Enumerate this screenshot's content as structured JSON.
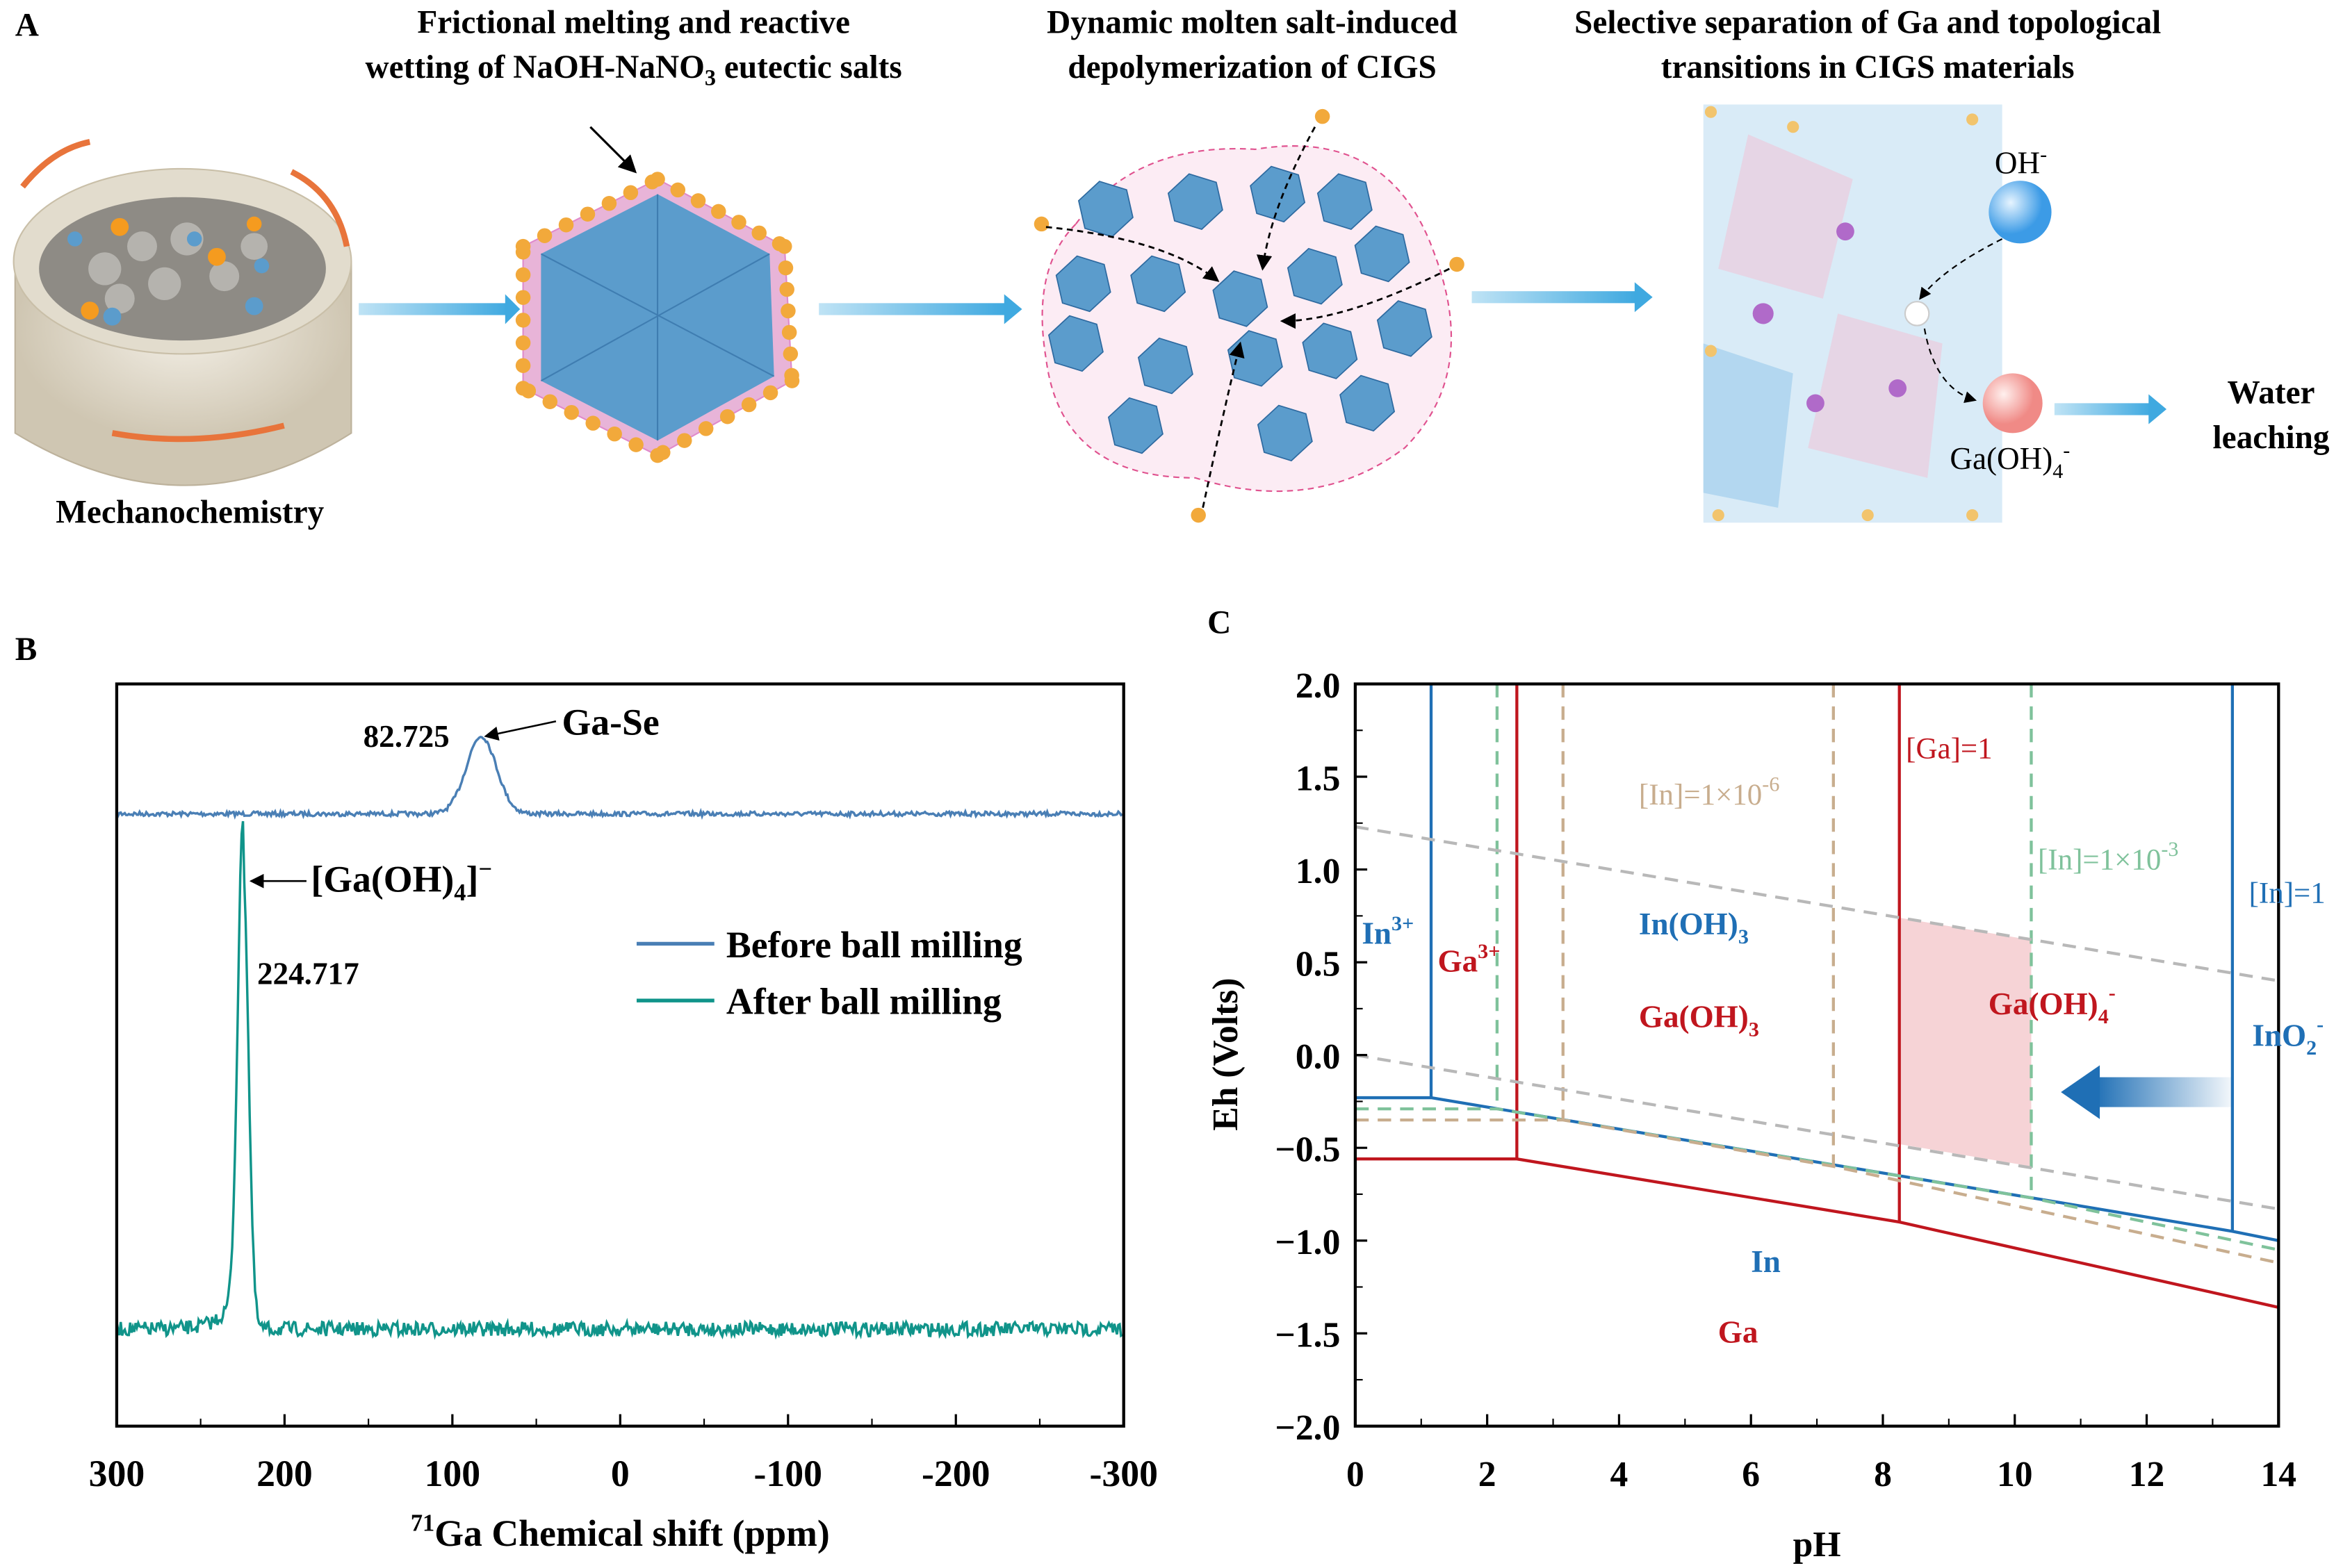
{
  "panel_a": {
    "label": "A",
    "step1": {
      "caption": "Mechanochemistry"
    },
    "step2": {
      "title_line1": "Frictional melting and reactive",
      "title_line2_pre": "wetting of NaOH-NaNO",
      "title_line2_sub": "3",
      "title_line2_post": " eutectic salts"
    },
    "step3": {
      "title_line1": "Dynamic molten salt-induced",
      "title_line2": "depolymerization of CIGS"
    },
    "step4": {
      "title_line1": "Selective separation of Ga and topological",
      "title_line2": "transitions in CIGS materials",
      "oh_label": "OH",
      "oh_sup": "-",
      "gaoh_label": "Ga(OH)",
      "gaoh_sub": "4",
      "gaoh_sup": "-"
    },
    "outcome": {
      "line1": "Water",
      "line2": "leaching"
    },
    "colors": {
      "arrow": "#3fa9e0",
      "rotation_arrow": "#e8743b",
      "salt_ball": "#f2a93b",
      "crystal": "#5b9ccc"
    }
  },
  "chart_data": [
    {
      "panel": "B",
      "type": "line",
      "xlabel_sup": "71",
      "xlabel": "Ga Chemical shift (ppm)",
      "xlim": [
        300,
        -300
      ],
      "xticks": [
        "300",
        "200",
        "100",
        "0",
        "-100",
        "-200",
        "-300"
      ],
      "y_ticks_shown": false,
      "legend": "upper-right",
      "series": [
        {
          "name": "Before ball milling",
          "color": "#4a7fb5",
          "peak_ppm": 82.725,
          "peak_label": "82.725",
          "annotation": "Ga-Se"
        },
        {
          "name": "After ball milling",
          "color": "#10948a",
          "peak_ppm": 224.717,
          "peak_label": "224.717",
          "annotation_pre": "[Ga(OH)",
          "annotation_sub": "4",
          "annotation_post": "]",
          "annotation_sup": "−"
        }
      ]
    },
    {
      "panel": "C",
      "type": "line",
      "xlabel": "pH",
      "ylabel": "Eh (Volts)",
      "xlim": [
        0,
        14
      ],
      "ylim": [
        -2.0,
        2.0
      ],
      "xticks": [
        "0",
        "2",
        "4",
        "6",
        "8",
        "10",
        "12",
        "14"
      ],
      "yticks": [
        "2.0",
        "1.5",
        "1.0",
        "0.5",
        "0.0",
        "−0.5",
        "−1.0",
        "−1.5",
        "−2.0"
      ],
      "lines": [
        {
          "id": "in-1",
          "color": "#1f6fb5",
          "dash": false,
          "points": [
            [
              1.15,
              2.0
            ],
            [
              1.15,
              -0.23
            ]
          ]
        },
        {
          "id": "in-1",
          "color": "#1f6fb5",
          "dash": false,
          "points": [
            [
              0,
              -0.23
            ],
            [
              1.15,
              -0.23
            ],
            [
              13.3,
              -0.95
            ],
            [
              14,
              -1.0
            ]
          ]
        },
        {
          "id": "in-1",
          "color": "#1f6fb5",
          "dash": false,
          "points": [
            [
              13.3,
              2.0
            ],
            [
              13.3,
              -0.95
            ]
          ]
        },
        {
          "id": "ga-1",
          "color": "#c0161e",
          "dash": false,
          "points": [
            [
              0,
              -0.56
            ],
            [
              2.45,
              -0.56
            ],
            [
              8.25,
              -0.9
            ],
            [
              14,
              -1.36
            ]
          ]
        },
        {
          "id": "ga-1",
          "color": "#c0161e",
          "dash": false,
          "points": [
            [
              2.45,
              2.0
            ],
            [
              2.45,
              -0.56
            ]
          ]
        },
        {
          "id": "ga-1",
          "color": "#c0161e",
          "dash": false,
          "points": [
            [
              8.25,
              2.0
            ],
            [
              8.25,
              -0.9
            ]
          ]
        },
        {
          "id": "in-1e-3",
          "color": "#7fc29b",
          "dash": true,
          "points": [
            [
              0,
              -0.29
            ],
            [
              2.15,
              -0.29
            ],
            [
              10.25,
              -0.77
            ],
            [
              14,
              -1.05
            ]
          ]
        },
        {
          "id": "in-1e-3",
          "color": "#7fc29b",
          "dash": true,
          "points": [
            [
              2.15,
              2.0
            ],
            [
              2.15,
              -0.29
            ]
          ]
        },
        {
          "id": "in-1e-3",
          "color": "#7fc29b",
          "dash": true,
          "points": [
            [
              10.25,
              2.0
            ],
            [
              10.25,
              -0.77
            ]
          ]
        },
        {
          "id": "in-1e-6",
          "color": "#c8ad8e",
          "dash": true,
          "points": [
            [
              0,
              -0.35
            ],
            [
              3.15,
              -0.35
            ],
            [
              7.25,
              -0.6
            ],
            [
              14,
              -1.12
            ]
          ]
        },
        {
          "id": "in-1e-6",
          "color": "#c8ad8e",
          "dash": true,
          "points": [
            [
              3.15,
              2.0
            ],
            [
              3.15,
              -0.35
            ]
          ]
        },
        {
          "id": "in-1e-6",
          "color": "#c8ad8e",
          "dash": true,
          "points": [
            [
              7.25,
              2.0
            ],
            [
              7.25,
              -0.6
            ]
          ]
        },
        {
          "id": "water-upper",
          "color": "#b8b8b8",
          "dash": true,
          "points": [
            [
              0,
              1.23
            ],
            [
              14,
              0.4
            ]
          ]
        },
        {
          "id": "water-lower",
          "color": "#b8b8b8",
          "dash": true,
          "points": [
            [
              0,
              0.0
            ],
            [
              14,
              -0.83
            ]
          ]
        }
      ],
      "shaded_region": {
        "color": "#f6d3d6",
        "points": [
          [
            8.25,
            0.74
          ],
          [
            10.25,
            0.62
          ],
          [
            10.25,
            -0.6
          ],
          [
            8.25,
            -0.48
          ]
        ]
      },
      "arrow": {
        "from": [
          13.3,
          -0.2
        ],
        "to": [
          10.7,
          -0.2
        ],
        "color": "#1f6fb5"
      },
      "labels": [
        {
          "text": "In",
          "sup": "3+",
          "color": "#1f6fb5",
          "bold": true,
          "at": [
            0.1,
            0.6
          ]
        },
        {
          "text": "Ga",
          "sup": "3+",
          "color": "#c0161e",
          "bold": true,
          "at": [
            1.25,
            0.45
          ]
        },
        {
          "text": "In(OH)",
          "sub": "3",
          "color": "#1f6fb5",
          "bold": true,
          "at": [
            4.3,
            0.65
          ]
        },
        {
          "text": "Ga(OH)",
          "sub": "3",
          "color": "#c0161e",
          "bold": true,
          "at": [
            4.3,
            0.15
          ]
        },
        {
          "text": "Ga(OH)",
          "sub": "4",
          "sup": "-",
          "color": "#c0161e",
          "bold": true,
          "at": [
            9.6,
            0.22
          ]
        },
        {
          "text": "InO",
          "sub": "2",
          "sup": "-",
          "color": "#1f6fb5",
          "bold": true,
          "at": [
            13.6,
            0.05
          ]
        },
        {
          "text": "In",
          "color": "#1f6fb5",
          "bold": true,
          "at": [
            6.0,
            -1.17
          ]
        },
        {
          "text": "Ga",
          "color": "#c0161e",
          "bold": true,
          "at": [
            5.5,
            -1.55
          ]
        },
        {
          "text": "[Ga]=1",
          "color": "#c0161e",
          "bold": false,
          "at": [
            8.35,
            1.6
          ]
        },
        {
          "text": "[In]=1×10",
          "sup": "-6",
          "color": "#c8ad8e",
          "bold": false,
          "at": [
            4.3,
            1.35
          ]
        },
        {
          "text": "[In]=1×10",
          "sup": "-3",
          "color": "#7fc29b",
          "bold": false,
          "at": [
            10.35,
            1.0
          ]
        },
        {
          "text": "[In]=1",
          "color": "#1f6fb5",
          "bold": false,
          "at": [
            13.55,
            0.82
          ]
        }
      ]
    }
  ]
}
